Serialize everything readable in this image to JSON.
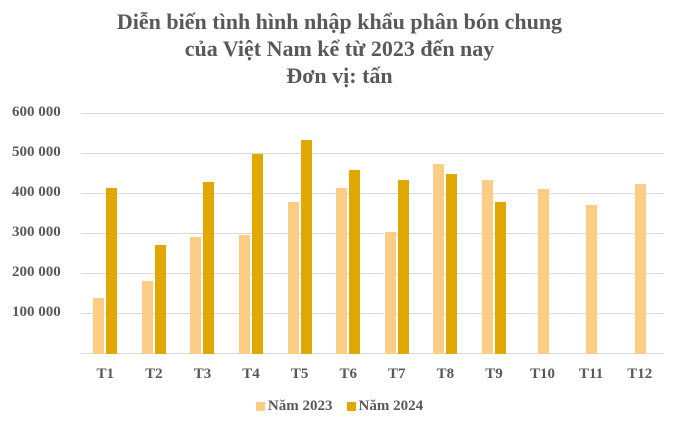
{
  "title_lines": [
    "Diễn biến tình hình nhập khẩu phân bón chung",
    "của Việt Nam kể từ 2023 đến nay",
    "Đơn vị: tấn"
  ],
  "colors": {
    "s2023": "#fdcd85",
    "s2024": "#e0a800",
    "grid": "#d9d9d9",
    "text": "#595959"
  },
  "yaxis": {
    "ticks": [
      "600 000",
      "500 000",
      "400 000",
      "300 000",
      "200 000",
      "100 000"
    ]
  },
  "legend": {
    "s2023": "Năm 2023",
    "s2024": "Năm 2024"
  },
  "chart_data": {
    "type": "bar",
    "title": "Diễn biến tình hình nhập khẩu phân bón chung của Việt Nam kể từ 2023 đến nay",
    "subtitle": "Đơn vị: tấn",
    "categories": [
      "T1",
      "T2",
      "T3",
      "T4",
      "T5",
      "T6",
      "T7",
      "T8",
      "T9",
      "T10",
      "T11",
      "T12"
    ],
    "series": [
      {
        "name": "Năm 2023",
        "color": "#fdcd85",
        "values": [
          140000,
          182000,
          292000,
          297000,
          379000,
          414000,
          304000,
          472000,
          432000,
          412000,
          372000,
          424000
        ]
      },
      {
        "name": "Năm 2024",
        "color": "#e0a800",
        "values": [
          414000,
          272000,
          429000,
          497000,
          532000,
          457000,
          434000,
          449000,
          379000,
          null,
          null,
          null
        ]
      }
    ],
    "xlabel": "",
    "ylabel": "",
    "ylim": [
      0,
      600000
    ],
    "yticks": [
      100000,
      200000,
      300000,
      400000,
      500000,
      600000
    ],
    "grid": true,
    "legend_position": "bottom"
  }
}
